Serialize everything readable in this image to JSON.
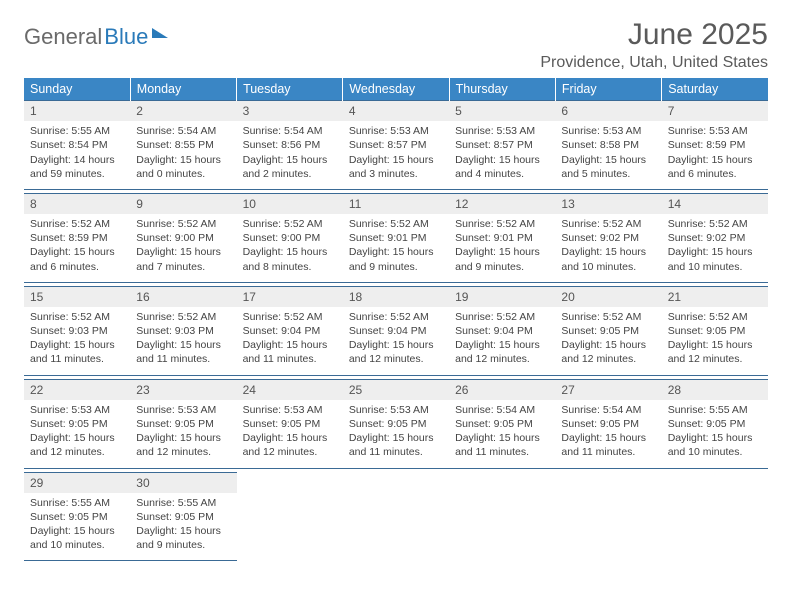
{
  "logo": {
    "text1": "General",
    "text2": "Blue"
  },
  "title": "June 2025",
  "location": "Providence, Utah, United States",
  "colors": {
    "header_bg": "#3a86c5",
    "header_text": "#ffffff",
    "daynum_bg": "#eeeeee",
    "rule": "#3a6a95",
    "body_text": "#444444",
    "title_text": "#5a5a5a"
  },
  "weekdays": [
    "Sunday",
    "Monday",
    "Tuesday",
    "Wednesday",
    "Thursday",
    "Friday",
    "Saturday"
  ],
  "weeks": [
    [
      {
        "n": "1",
        "sr": "Sunrise: 5:55 AM",
        "ss": "Sunset: 8:54 PM",
        "d1": "Daylight: 14 hours",
        "d2": "and 59 minutes."
      },
      {
        "n": "2",
        "sr": "Sunrise: 5:54 AM",
        "ss": "Sunset: 8:55 PM",
        "d1": "Daylight: 15 hours",
        "d2": "and 0 minutes."
      },
      {
        "n": "3",
        "sr": "Sunrise: 5:54 AM",
        "ss": "Sunset: 8:56 PM",
        "d1": "Daylight: 15 hours",
        "d2": "and 2 minutes."
      },
      {
        "n": "4",
        "sr": "Sunrise: 5:53 AM",
        "ss": "Sunset: 8:57 PM",
        "d1": "Daylight: 15 hours",
        "d2": "and 3 minutes."
      },
      {
        "n": "5",
        "sr": "Sunrise: 5:53 AM",
        "ss": "Sunset: 8:57 PM",
        "d1": "Daylight: 15 hours",
        "d2": "and 4 minutes."
      },
      {
        "n": "6",
        "sr": "Sunrise: 5:53 AM",
        "ss": "Sunset: 8:58 PM",
        "d1": "Daylight: 15 hours",
        "d2": "and 5 minutes."
      },
      {
        "n": "7",
        "sr": "Sunrise: 5:53 AM",
        "ss": "Sunset: 8:59 PM",
        "d1": "Daylight: 15 hours",
        "d2": "and 6 minutes."
      }
    ],
    [
      {
        "n": "8",
        "sr": "Sunrise: 5:52 AM",
        "ss": "Sunset: 8:59 PM",
        "d1": "Daylight: 15 hours",
        "d2": "and 6 minutes."
      },
      {
        "n": "9",
        "sr": "Sunrise: 5:52 AM",
        "ss": "Sunset: 9:00 PM",
        "d1": "Daylight: 15 hours",
        "d2": "and 7 minutes."
      },
      {
        "n": "10",
        "sr": "Sunrise: 5:52 AM",
        "ss": "Sunset: 9:00 PM",
        "d1": "Daylight: 15 hours",
        "d2": "and 8 minutes."
      },
      {
        "n": "11",
        "sr": "Sunrise: 5:52 AM",
        "ss": "Sunset: 9:01 PM",
        "d1": "Daylight: 15 hours",
        "d2": "and 9 minutes."
      },
      {
        "n": "12",
        "sr": "Sunrise: 5:52 AM",
        "ss": "Sunset: 9:01 PM",
        "d1": "Daylight: 15 hours",
        "d2": "and 9 minutes."
      },
      {
        "n": "13",
        "sr": "Sunrise: 5:52 AM",
        "ss": "Sunset: 9:02 PM",
        "d1": "Daylight: 15 hours",
        "d2": "and 10 minutes."
      },
      {
        "n": "14",
        "sr": "Sunrise: 5:52 AM",
        "ss": "Sunset: 9:02 PM",
        "d1": "Daylight: 15 hours",
        "d2": "and 10 minutes."
      }
    ],
    [
      {
        "n": "15",
        "sr": "Sunrise: 5:52 AM",
        "ss": "Sunset: 9:03 PM",
        "d1": "Daylight: 15 hours",
        "d2": "and 11 minutes."
      },
      {
        "n": "16",
        "sr": "Sunrise: 5:52 AM",
        "ss": "Sunset: 9:03 PM",
        "d1": "Daylight: 15 hours",
        "d2": "and 11 minutes."
      },
      {
        "n": "17",
        "sr": "Sunrise: 5:52 AM",
        "ss": "Sunset: 9:04 PM",
        "d1": "Daylight: 15 hours",
        "d2": "and 11 minutes."
      },
      {
        "n": "18",
        "sr": "Sunrise: 5:52 AM",
        "ss": "Sunset: 9:04 PM",
        "d1": "Daylight: 15 hours",
        "d2": "and 12 minutes."
      },
      {
        "n": "19",
        "sr": "Sunrise: 5:52 AM",
        "ss": "Sunset: 9:04 PM",
        "d1": "Daylight: 15 hours",
        "d2": "and 12 minutes."
      },
      {
        "n": "20",
        "sr": "Sunrise: 5:52 AM",
        "ss": "Sunset: 9:05 PM",
        "d1": "Daylight: 15 hours",
        "d2": "and 12 minutes."
      },
      {
        "n": "21",
        "sr": "Sunrise: 5:52 AM",
        "ss": "Sunset: 9:05 PM",
        "d1": "Daylight: 15 hours",
        "d2": "and 12 minutes."
      }
    ],
    [
      {
        "n": "22",
        "sr": "Sunrise: 5:53 AM",
        "ss": "Sunset: 9:05 PM",
        "d1": "Daylight: 15 hours",
        "d2": "and 12 minutes."
      },
      {
        "n": "23",
        "sr": "Sunrise: 5:53 AM",
        "ss": "Sunset: 9:05 PM",
        "d1": "Daylight: 15 hours",
        "d2": "and 12 minutes."
      },
      {
        "n": "24",
        "sr": "Sunrise: 5:53 AM",
        "ss": "Sunset: 9:05 PM",
        "d1": "Daylight: 15 hours",
        "d2": "and 12 minutes."
      },
      {
        "n": "25",
        "sr": "Sunrise: 5:53 AM",
        "ss": "Sunset: 9:05 PM",
        "d1": "Daylight: 15 hours",
        "d2": "and 11 minutes."
      },
      {
        "n": "26",
        "sr": "Sunrise: 5:54 AM",
        "ss": "Sunset: 9:05 PM",
        "d1": "Daylight: 15 hours",
        "d2": "and 11 minutes."
      },
      {
        "n": "27",
        "sr": "Sunrise: 5:54 AM",
        "ss": "Sunset: 9:05 PM",
        "d1": "Daylight: 15 hours",
        "d2": "and 11 minutes."
      },
      {
        "n": "28",
        "sr": "Sunrise: 5:55 AM",
        "ss": "Sunset: 9:05 PM",
        "d1": "Daylight: 15 hours",
        "d2": "and 10 minutes."
      }
    ],
    [
      {
        "n": "29",
        "sr": "Sunrise: 5:55 AM",
        "ss": "Sunset: 9:05 PM",
        "d1": "Daylight: 15 hours",
        "d2": "and 10 minutes."
      },
      {
        "n": "30",
        "sr": "Sunrise: 5:55 AM",
        "ss": "Sunset: 9:05 PM",
        "d1": "Daylight: 15 hours",
        "d2": "and 9 minutes."
      },
      null,
      null,
      null,
      null,
      null
    ]
  ]
}
